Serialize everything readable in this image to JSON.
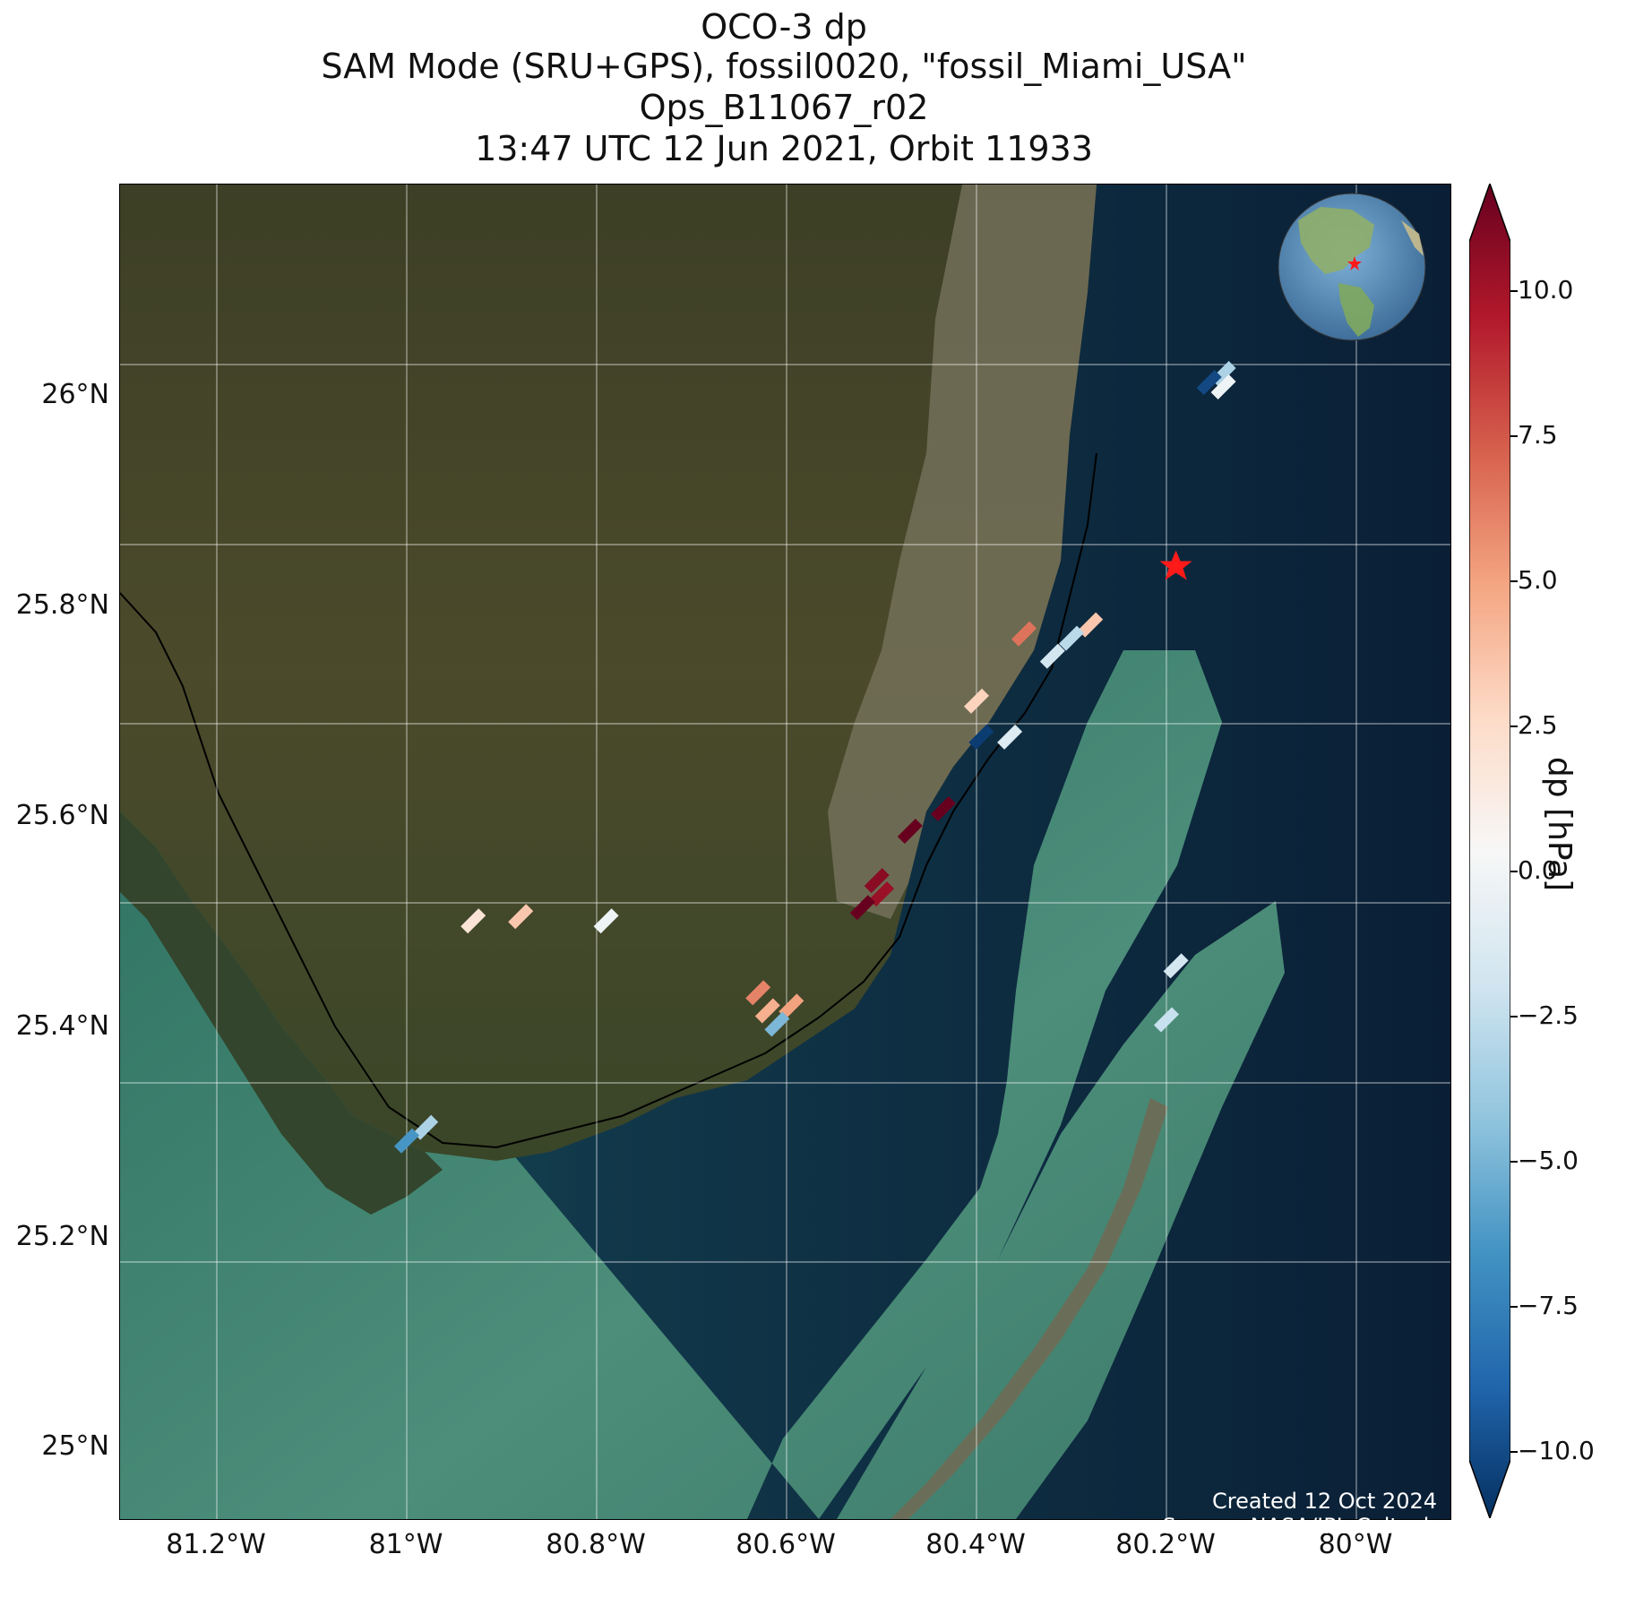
{
  "title": {
    "line1": "OCO-3 dp",
    "line2": "SAM Mode (SRU+GPS), fossil0020, \"fossil_Miami_USA\"",
    "line3": "Ops_B11067_r02",
    "line4": "13:47 UTC 12 Jun 2021, Orbit 11933"
  },
  "axes": {
    "lat_ticks": [
      "26°N",
      "25.8°N",
      "25.6°N",
      "25.4°N",
      "25.2°N",
      "25°N"
    ],
    "lon_ticks": [
      "81.2°W",
      "81°W",
      "80.8°W",
      "80.6°W",
      "80.4°W",
      "80.2°W",
      "80°W"
    ]
  },
  "colorbar": {
    "label": "dp [hPa]",
    "ticks": [
      "10.0",
      "7.5",
      "5.0",
      "2.5",
      "0.0",
      "−2.5",
      "−5.0",
      "−7.5",
      "−10.0"
    ],
    "range": [
      -11,
      11
    ],
    "colors": [
      "#053061",
      "#2166ac",
      "#4393c3",
      "#92c5de",
      "#d1e5f0",
      "#f7f7f7",
      "#fddbc7",
      "#f4a582",
      "#d6604d",
      "#b2182b",
      "#67001f"
    ]
  },
  "credits": {
    "line1": "Created 12 Oct 2024",
    "line2": "Source: NASA/JPL-Caltech"
  },
  "chart_data": {
    "type": "scatter",
    "title": "OCO-3 dp",
    "xlabel": "",
    "ylabel": "",
    "xlim": [
      -81.3,
      -79.9
    ],
    "ylim": [
      24.9,
      26.2
    ],
    "target": {
      "name": "fossil_Miami_USA",
      "lon": -80.19,
      "lat": 25.775
    },
    "soundings": [
      {
        "lon": -80.14,
        "lat": 25.99,
        "dp": -3.5
      },
      {
        "lon": -80.155,
        "lat": 25.98,
        "dp": -10.0
      },
      {
        "lon": -80.14,
        "lat": 25.975,
        "dp": -0.5
      },
      {
        "lon": -80.35,
        "lat": 25.7,
        "dp": 6.0
      },
      {
        "lon": -80.28,
        "lat": 25.71,
        "dp": 3.0
      },
      {
        "lon": -80.3,
        "lat": 25.695,
        "dp": -3.0
      },
      {
        "lon": -80.32,
        "lat": 25.675,
        "dp": -2.0
      },
      {
        "lon": -80.4,
        "lat": 25.625,
        "dp": 2.5
      },
      {
        "lon": -80.395,
        "lat": 25.585,
        "dp": -10.5
      },
      {
        "lon": -80.365,
        "lat": 25.585,
        "dp": -1.5
      },
      {
        "lon": -80.435,
        "lat": 25.505,
        "dp": 11.0
      },
      {
        "lon": -80.47,
        "lat": 25.48,
        "dp": 11.0
      },
      {
        "lon": -80.505,
        "lat": 25.425,
        "dp": 10.0
      },
      {
        "lon": -80.5,
        "lat": 25.41,
        "dp": 9.5
      },
      {
        "lon": -80.52,
        "lat": 25.395,
        "dp": 11.0
      },
      {
        "lon": -80.88,
        "lat": 25.385,
        "dp": 3.0
      },
      {
        "lon": -80.93,
        "lat": 25.38,
        "dp": 1.5
      },
      {
        "lon": -80.79,
        "lat": 25.38,
        "dp": -0.5
      },
      {
        "lon": -80.63,
        "lat": 25.3,
        "dp": 5.5
      },
      {
        "lon": -80.62,
        "lat": 25.28,
        "dp": 4.0
      },
      {
        "lon": -80.595,
        "lat": 25.285,
        "dp": 4.5
      },
      {
        "lon": -80.61,
        "lat": 25.265,
        "dp": -5.0
      },
      {
        "lon": -80.19,
        "lat": 25.33,
        "dp": -2.0
      },
      {
        "lon": -80.2,
        "lat": 25.27,
        "dp": -2.5
      },
      {
        "lon": -80.98,
        "lat": 25.15,
        "dp": -3.5
      },
      {
        "lon": -81.0,
        "lat": 25.135,
        "dp": -6.5
      }
    ]
  }
}
